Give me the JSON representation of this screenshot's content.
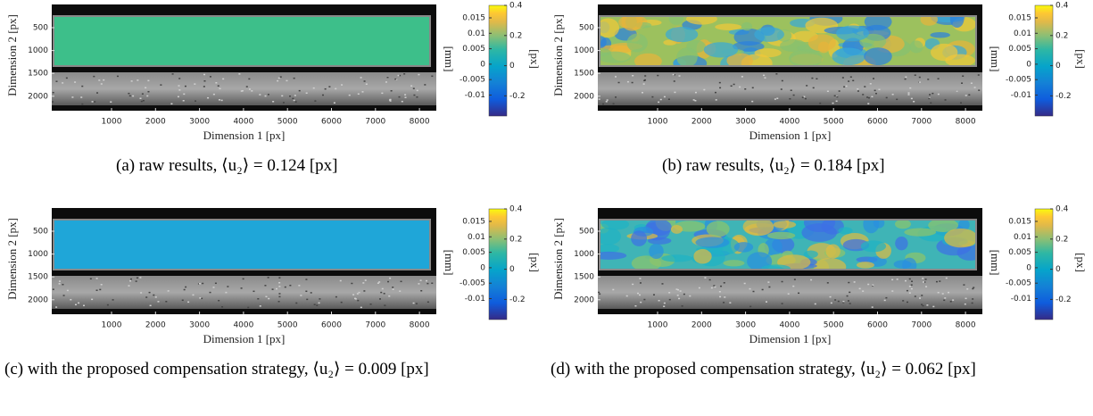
{
  "panels": [
    {
      "x_label": "Dimension 1 [px]",
      "y_label": "Dimension 2 [px]",
      "xticks": [
        1000,
        2000,
        3000,
        4000,
        5000,
        6000,
        7000,
        8000
      ],
      "yticks": [
        500,
        1000,
        1500,
        2000
      ],
      "colorbar_left_label": "[mm]",
      "colorbar_left_ticks": [
        0.015,
        0.01,
        0.005,
        0,
        -0.005,
        -0.01
      ],
      "colorbar_right_label": "[px]",
      "colorbar_right_ticks": [
        0.4,
        0.2,
        0,
        -0.2
      ],
      "caption": "(a) raw results, ⟨u₂⟩ = 0.124 [px]"
    },
    {
      "x_label": "Dimension 1 [px]",
      "y_label": "Dimension 2 [px]",
      "xticks": [
        1000,
        2000,
        3000,
        4000,
        5000,
        6000,
        7000,
        8000
      ],
      "yticks": [
        500,
        1000,
        1500,
        2000
      ],
      "colorbar_left_label": "[mm]",
      "colorbar_left_ticks": [
        0.015,
        0.01,
        0.005,
        0,
        -0.005,
        -0.01
      ],
      "colorbar_right_label": "[px]",
      "colorbar_right_ticks": [
        0.4,
        0.2,
        0,
        -0.2
      ],
      "caption": "(b) raw results, ⟨u₂⟩ = 0.184 [px]"
    },
    {
      "x_label": "Dimension 1 [px]",
      "y_label": "Dimension 2 [px]",
      "xticks": [
        1000,
        2000,
        3000,
        4000,
        5000,
        6000,
        7000,
        8000
      ],
      "yticks": [
        500,
        1000,
        1500,
        2000
      ],
      "colorbar_left_label": "[mm]",
      "colorbar_left_ticks": [
        0.015,
        0.01,
        0.005,
        0,
        -0.005,
        -0.01
      ],
      "colorbar_right_label": "[px]",
      "colorbar_right_ticks": [
        0.4,
        0.2,
        0,
        -0.2
      ],
      "caption": "(c) with the proposed compensation strategy, ⟨u₂⟩ = 0.009 [px]"
    },
    {
      "x_label": "Dimension 1 [px]",
      "y_label": "Dimension 2 [px]",
      "xticks": [
        1000,
        2000,
        3000,
        4000,
        5000,
        6000,
        7000,
        8000
      ],
      "yticks": [
        500,
        1000,
        1500,
        2000
      ],
      "colorbar_left_label": "[mm]",
      "colorbar_left_ticks": [
        0.015,
        0.01,
        0.005,
        0,
        -0.005,
        -0.01
      ],
      "colorbar_right_label": "[px]",
      "colorbar_right_ticks": [
        0.4,
        0.2,
        0,
        -0.2
      ],
      "caption": "(d) with the proposed compensation strategy, ⟨u₂⟩ = 0.062 [px]"
    }
  ]
}
